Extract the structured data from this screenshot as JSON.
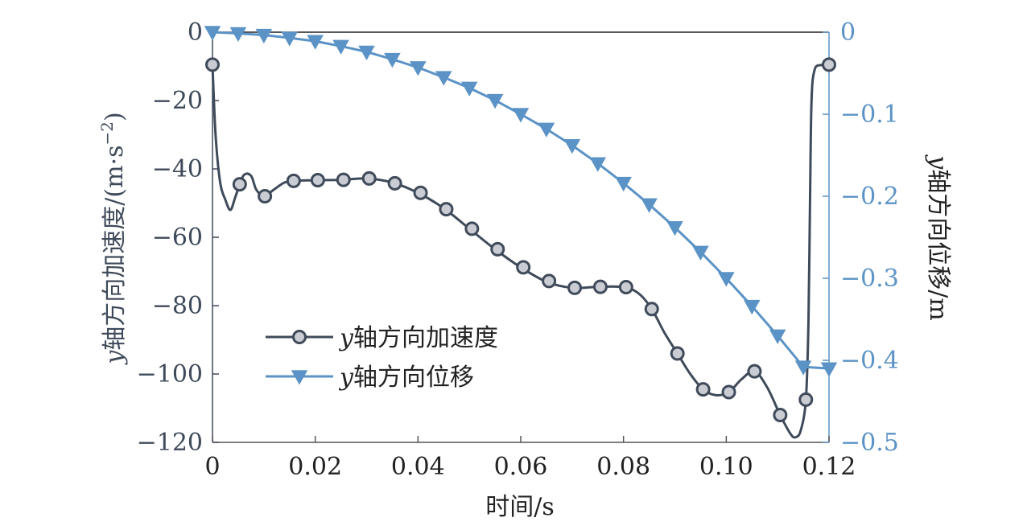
{
  "colors": {
    "accel": "#3f4a5a",
    "disp": "#5b93c6",
    "axis": "#555555",
    "text": "#222222"
  },
  "chart_data": {
    "type": "line",
    "x": {
      "label": "时间/s",
      "lim": [
        0,
        0.12
      ],
      "ticks": [
        0,
        0.02,
        0.04,
        0.06,
        0.08,
        0.1,
        0.12
      ],
      "tick_labels": [
        "0",
        "0.02",
        "0.04",
        "0.06",
        "0.08",
        "0.10",
        "0.12"
      ]
    },
    "y_left": {
      "label_var": "y",
      "label_rest": "轴方向加速度/(m·s",
      "label_sup": "−2",
      "label_close": ")",
      "lim": [
        -120,
        0
      ],
      "ticks": [
        0,
        -20,
        -40,
        -60,
        -80,
        -100,
        -120
      ],
      "tick_labels": [
        "0",
        "−20",
        "−40",
        "−60",
        "−80",
        "−100",
        "−120"
      ]
    },
    "y_right": {
      "label_var": "y",
      "label_rest": "轴方向位移/m",
      "lim": [
        -0.5,
        0
      ],
      "ticks": [
        0,
        -0.1,
        -0.2,
        -0.3,
        -0.4,
        -0.5
      ],
      "tick_labels": [
        "0",
        "−0.1",
        "−0.2",
        "−0.3",
        "−0.4",
        "−0.5"
      ]
    },
    "legend": {
      "position": "lower-left",
      "entries": [
        {
          "var": "y",
          "text": "轴方向加速度"
        },
        {
          "var": "y",
          "text": "轴方向位移"
        }
      ]
    },
    "series": [
      {
        "name": "y轴方向加速度",
        "axis": "left",
        "marker": "circle",
        "curve": [
          [
            0.0,
            -9.5
          ],
          [
            0.0006,
            -30
          ],
          [
            0.0015,
            -44
          ],
          [
            0.0025,
            -49
          ],
          [
            0.0035,
            -52
          ],
          [
            0.0045,
            -48
          ],
          [
            0.006,
            -42
          ],
          [
            0.0075,
            -42
          ],
          [
            0.0085,
            -46
          ],
          [
            0.01,
            -48
          ],
          [
            0.012,
            -46
          ],
          [
            0.014,
            -44
          ],
          [
            0.016,
            -43.5
          ],
          [
            0.02,
            -43.3
          ],
          [
            0.025,
            -43.2
          ],
          [
            0.03,
            -42.8
          ],
          [
            0.035,
            -44
          ],
          [
            0.04,
            -47
          ],
          [
            0.045,
            -51.5
          ],
          [
            0.05,
            -57.5
          ],
          [
            0.055,
            -63.5
          ],
          [
            0.06,
            -68.8
          ],
          [
            0.065,
            -73
          ],
          [
            0.07,
            -74.8
          ],
          [
            0.075,
            -74.5
          ],
          [
            0.08,
            -74.6
          ],
          [
            0.083,
            -76.5
          ],
          [
            0.0855,
            -81
          ],
          [
            0.088,
            -88
          ],
          [
            0.0905,
            -94
          ],
          [
            0.093,
            -100
          ],
          [
            0.0955,
            -104.5
          ],
          [
            0.098,
            -106.2
          ],
          [
            0.1005,
            -105.3
          ],
          [
            0.103,
            -101.5
          ],
          [
            0.1055,
            -99.2
          ],
          [
            0.108,
            -104
          ],
          [
            0.1105,
            -112
          ],
          [
            0.1125,
            -117.5
          ],
          [
            0.1135,
            -118.5
          ],
          [
            0.1145,
            -116.5
          ],
          [
            0.1155,
            -107.5
          ],
          [
            0.116,
            -85
          ],
          [
            0.1163,
            -50
          ],
          [
            0.1166,
            -20
          ],
          [
            0.1172,
            -11
          ],
          [
            0.1185,
            -9.6
          ],
          [
            0.12,
            -9.5
          ]
        ],
        "markers": [
          [
            0.0,
            -9.5
          ],
          [
            0.0053,
            -44.5
          ],
          [
            0.0102,
            -48
          ],
          [
            0.0158,
            -43.5
          ],
          [
            0.0205,
            -43.3
          ],
          [
            0.0255,
            -43.2
          ],
          [
            0.0305,
            -42.8
          ],
          [
            0.0355,
            -44.2
          ],
          [
            0.0405,
            -47
          ],
          [
            0.0455,
            -51.8
          ],
          [
            0.0505,
            -57.5
          ],
          [
            0.0555,
            -63.5
          ],
          [
            0.0605,
            -68.8
          ],
          [
            0.0655,
            -72.8
          ],
          [
            0.0705,
            -74.8
          ],
          [
            0.0755,
            -74.5
          ],
          [
            0.0805,
            -74.6
          ],
          [
            0.0855,
            -81
          ],
          [
            0.0905,
            -94
          ],
          [
            0.0955,
            -104.5
          ],
          [
            0.1005,
            -105.3
          ],
          [
            0.1055,
            -99.2
          ],
          [
            0.1105,
            -112
          ],
          [
            0.1155,
            -107.5
          ],
          [
            0.12,
            -9.5
          ]
        ]
      },
      {
        "name": "y轴方向位移",
        "axis": "right",
        "marker": "triangle-down",
        "points": [
          [
            0.0,
            0.0
          ],
          [
            0.005,
            -0.0015
          ],
          [
            0.01,
            -0.0035
          ],
          [
            0.015,
            -0.007
          ],
          [
            0.02,
            -0.011
          ],
          [
            0.025,
            -0.017
          ],
          [
            0.03,
            -0.024
          ],
          [
            0.035,
            -0.033
          ],
          [
            0.04,
            -0.043
          ],
          [
            0.045,
            -0.055
          ],
          [
            0.05,
            -0.068
          ],
          [
            0.055,
            -0.083
          ],
          [
            0.06,
            -0.1
          ],
          [
            0.065,
            -0.118
          ],
          [
            0.07,
            -0.138
          ],
          [
            0.075,
            -0.16
          ],
          [
            0.08,
            -0.184
          ],
          [
            0.085,
            -0.21
          ],
          [
            0.09,
            -0.238
          ],
          [
            0.095,
            -0.268
          ],
          [
            0.1,
            -0.3
          ],
          [
            0.105,
            -0.334
          ],
          [
            0.11,
            -0.37
          ],
          [
            0.115,
            -0.408
          ],
          [
            0.12,
            -0.41
          ]
        ]
      }
    ]
  }
}
